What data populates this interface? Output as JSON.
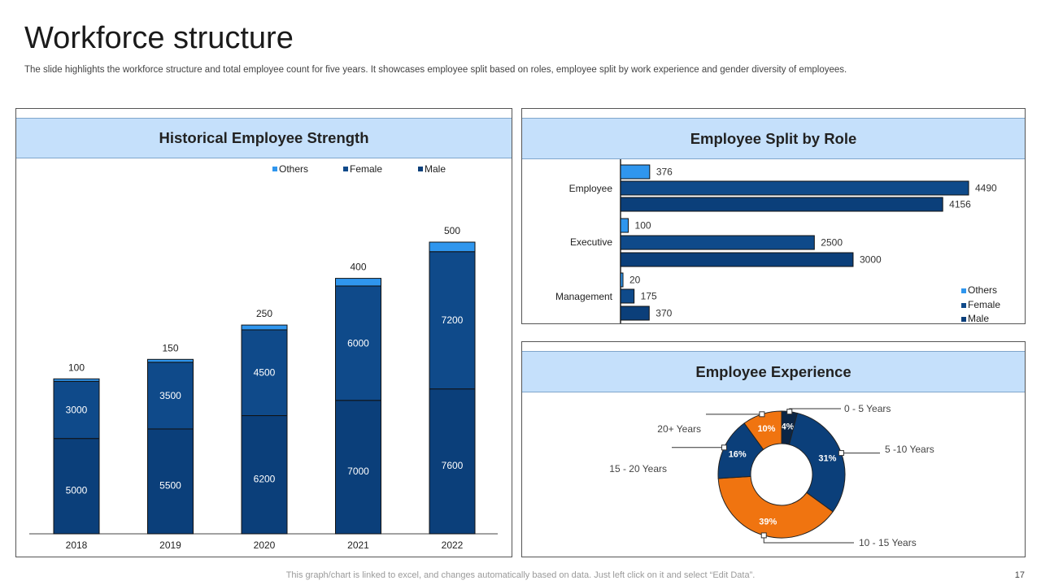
{
  "title": "Workforce structure",
  "subtitle": "The slide highlights the workforce structure and total employee count for five years. It showcases employee split based on roles, employee split by work experience and gender diversity of employees.",
  "footer_note": "This graph/chart is linked to excel,  and changes automatically based on data. Just left click on it and select “Edit Data”.",
  "page_number": "17",
  "colors": {
    "others": "#2f96ee",
    "female": "#0f4a8a",
    "male": "#0b3f7a",
    "orange": "#f07410",
    "dark": "#0b2545",
    "header": "#c5e0fb"
  },
  "panels": {
    "historical": {
      "title": "Historical Employee Strength"
    },
    "role": {
      "title": "Employee Split by Role"
    },
    "experience": {
      "title": "Employee Experience"
    }
  },
  "chart_data": [
    {
      "type": "bar",
      "stacked": true,
      "title": "Historical Employee Strength",
      "categories": [
        "2018",
        "2019",
        "2020",
        "2021",
        "2022"
      ],
      "series": [
        {
          "name": "Male",
          "values": [
            5000,
            5500,
            6200,
            7000,
            7600
          ]
        },
        {
          "name": "Female",
          "values": [
            3000,
            3500,
            4500,
            6000,
            7200
          ]
        },
        {
          "name": "Others",
          "values": [
            100,
            150,
            250,
            400,
            500
          ]
        }
      ],
      "legend": [
        "Others",
        "Female",
        "Male"
      ],
      "legend_position": "top",
      "ylim": [
        0,
        16000
      ]
    },
    {
      "type": "bar",
      "orientation": "horizontal",
      "title": "Employee Split by Role",
      "categories": [
        "Employee",
        "Executive",
        "Management"
      ],
      "series": [
        {
          "name": "Others",
          "values": [
            376,
            100,
            20
          ]
        },
        {
          "name": "Female",
          "values": [
            4490,
            2500,
            175
          ]
        },
        {
          "name": "Male",
          "values": [
            4156,
            3000,
            370
          ]
        }
      ],
      "legend": [
        "Others",
        "Female",
        "Male"
      ],
      "legend_position": "bottom-right",
      "xlim": [
        0,
        5500
      ]
    },
    {
      "type": "pie",
      "donut": true,
      "title": "Employee Experience",
      "slices": [
        {
          "label": "0 - 5 Years",
          "value": 4,
          "text": "4%"
        },
        {
          "label": "5 -10 Years",
          "value": 31,
          "text": "31%"
        },
        {
          "label": "10 - 15 Years",
          "value": 39,
          "text": "39%"
        },
        {
          "label": "15 - 20 Years",
          "value": 16,
          "text": "16%"
        },
        {
          "label": "20+ Years",
          "value": 10,
          "text": "10%"
        }
      ]
    }
  ]
}
